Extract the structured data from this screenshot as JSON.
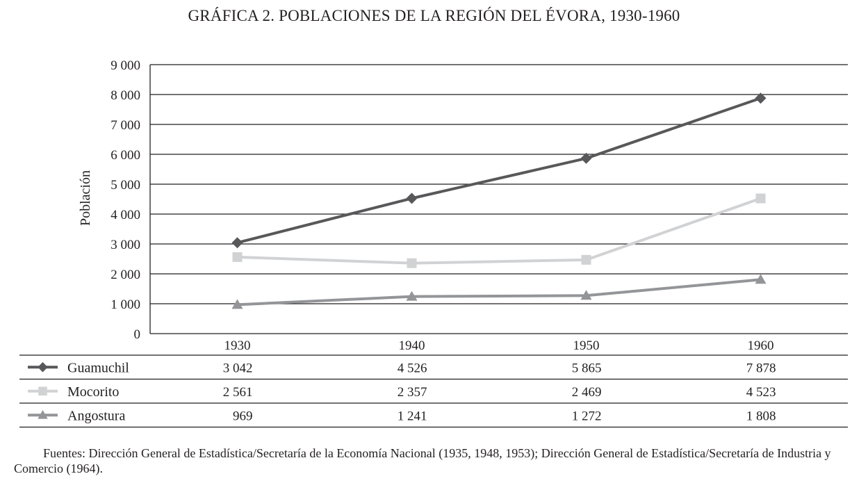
{
  "title": "GRÁFICA 2. POBLACIONES DE LA REGIÓN DEL ÉVORA, 1930-1960",
  "chart_data": {
    "type": "line",
    "title": "GRÁFICA 2. POBLACIONES DE LA REGIÓN DEL ÉVORA, 1930-1960",
    "xlabel": "",
    "ylabel": "Población",
    "x": [
      "1930",
      "1940",
      "1950",
      "1960"
    ],
    "ylim": [
      0,
      9000
    ],
    "yticks": [
      0,
      1000,
      2000,
      3000,
      4000,
      5000,
      6000,
      7000,
      8000,
      9000
    ],
    "ytick_labels": [
      "0",
      "1 000",
      "2 000",
      "3 000",
      "4 000",
      "5 000",
      "6 000",
      "7 000",
      "8 000",
      "9 000"
    ],
    "grid": true,
    "legend": "data-table-below",
    "series": [
      {
        "name": "Guamuchil",
        "marker": "diamond",
        "color": "#58585a",
        "values": [
          3042,
          4526,
          5865,
          7878
        ],
        "labels": [
          "3 042",
          "4 526",
          "5 865",
          "7 878"
        ]
      },
      {
        "name": "Mocorito",
        "marker": "square",
        "color": "#d1d2d4",
        "values": [
          2561,
          2357,
          2469,
          4523
        ],
        "labels": [
          "2 561",
          "2 357",
          "2 469",
          "4 523"
        ]
      },
      {
        "name": "Angostura",
        "marker": "triangle",
        "color": "#939598",
        "values": [
          969,
          1241,
          1272,
          1808
        ],
        "labels": [
          "969",
          "1 241",
          "1 272",
          "1 808"
        ]
      }
    ]
  },
  "source_note": "Fuentes: Dirección General de Estadística/Secretaría de la Economía Nacional (1935, 1948, 1953); Dirección General de Estadística/Secretaría de Industria y Comercio (1964)."
}
